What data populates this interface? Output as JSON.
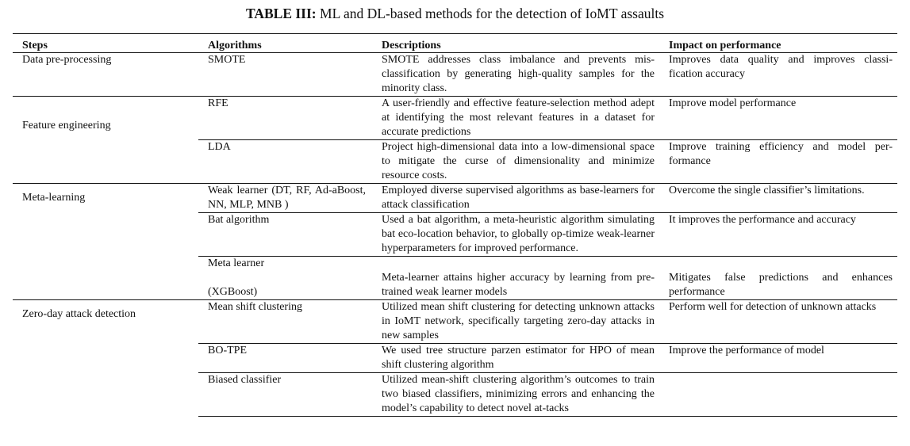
{
  "caption": {
    "label": "TABLE III:",
    "text": "ML and DL-based methods for the detection of IoMT assaults"
  },
  "headers": [
    "Steps",
    "Algorithms",
    "Descriptions",
    "Impact on performance"
  ],
  "groups": [
    {
      "step": "Data pre-processing",
      "rows": [
        {
          "algorithm": "SMOTE",
          "description": "SMOTE addresses class imbalance and prevents mis-classification by generating high-quality samples for the minority class.",
          "impact": "Improves data quality and improves classi-fication accuracy"
        }
      ]
    },
    {
      "step": "Feature engineering",
      "rows": [
        {
          "algorithm": "RFE",
          "description": "A user-friendly and effective feature-selection method adept at identifying the most relevant features in a dataset for accurate predictions",
          "impact": "Improve model performance"
        },
        {
          "algorithm": "LDA",
          "description": "Project high-dimensional data into a low-dimensional space to mitigate the curse of dimensionality and minimize resource costs.",
          "impact": "Improve training efficiency and model per-formance"
        }
      ]
    },
    {
      "step": "Meta-learning",
      "rows": [
        {
          "algorithm": "Weak learner (DT, RF, Ad-aBoost, NN, MLP, MNB )",
          "description": "Employed diverse supervised algorithms as base-learners for attack classification",
          "impact": "Overcome the single classifier’s limitations."
        },
        {
          "algorithm": "Bat algorithm",
          "description": "Used a bat algorithm, a meta-heuristic algorithm simulating bat eco-location behavior, to globally op-timize weak-learner hyperparameters for improved performance.",
          "impact": "It improves the performance and accuracy"
        },
        {
          "algorithm_line1": "Meta learner",
          "algorithm_line2": "(XGBoost)",
          "description": "Meta-learner attains higher accuracy by learning from pre-trained weak learner models",
          "impact": "Mitigates false predictions and enhances performance"
        }
      ]
    },
    {
      "step": "Zero-day attack detection",
      "rows": [
        {
          "algorithm": "Mean shift clustering",
          "description": "Utilized mean shift clustering for detecting unknown attacks in IoMT network, specifically targeting zero-day attacks in new samples",
          "impact": "Perform well for detection of unknown attacks"
        },
        {
          "algorithm": "BO-TPE",
          "description": "We used tree structure parzen estimator for HPO of mean shift clustering algorithm",
          "impact": "Improve the performance of model"
        },
        {
          "algorithm": "Biased classifier",
          "description": "Utilized mean-shift clustering algorithm’s outcomes to train two biased classifiers, minimizing errors and enhancing the model’s capability to detect novel at-tacks",
          "impact": ""
        }
      ]
    }
  ]
}
